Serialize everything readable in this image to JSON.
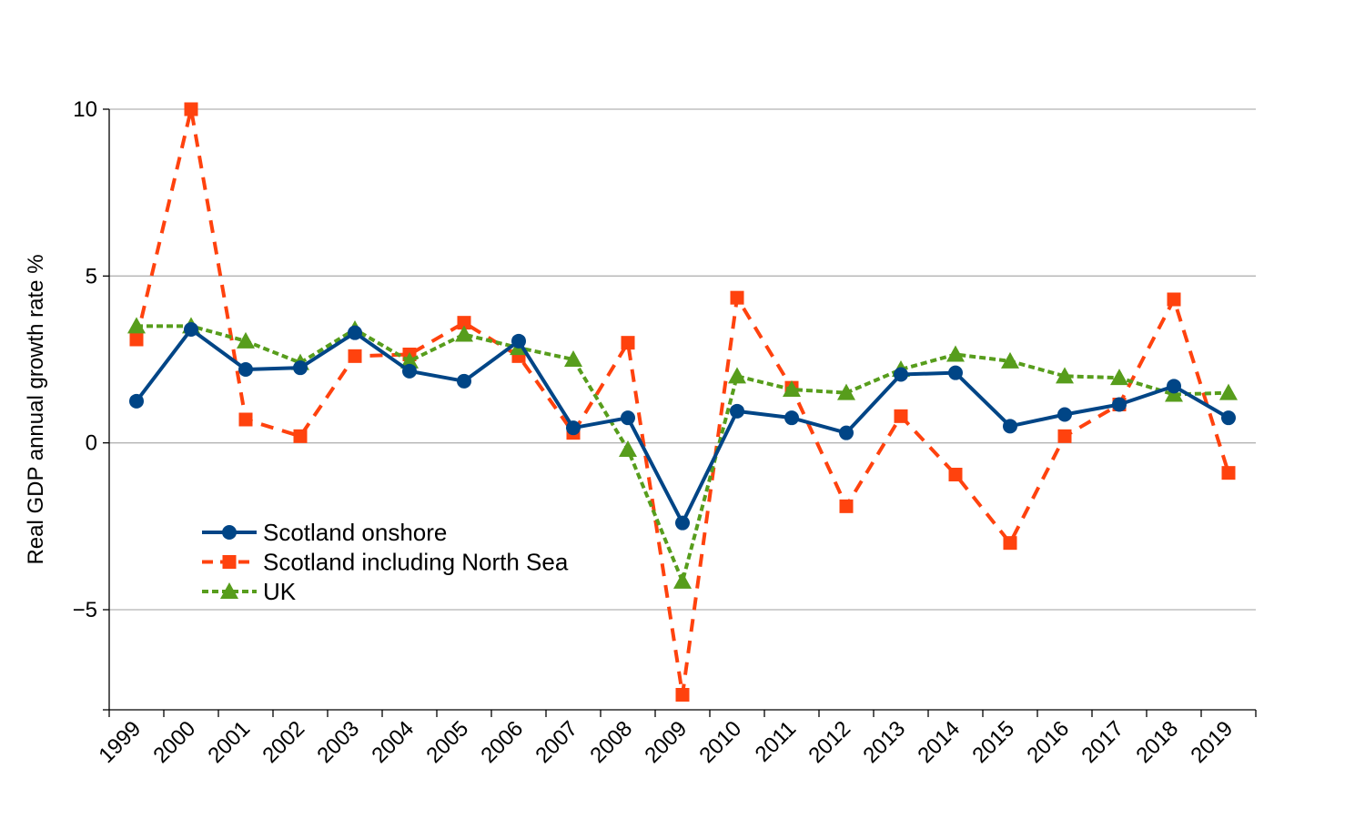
{
  "chart_data": {
    "type": "line",
    "title": "",
    "xlabel": "",
    "ylabel": "Real GDP annual growth rate %",
    "ylim": [
      -8,
      10
    ],
    "yticks": [
      10,
      5,
      0,
      -5
    ],
    "ytick_labels": [
      "10",
      "5",
      "0",
      "−5"
    ],
    "grid": true,
    "legend_position": "bottom-left",
    "categories": [
      "1999",
      "2000",
      "2001",
      "2002",
      "2003",
      "2004",
      "2005",
      "2006",
      "2007",
      "2008",
      "2009",
      "2010",
      "2011",
      "2012",
      "2013",
      "2014",
      "2015",
      "2016",
      "2017",
      "2018",
      "2019"
    ],
    "series": [
      {
        "name": "Scotland onshore",
        "color": "#004586",
        "line_style": "solid",
        "marker": "circle",
        "values": [
          1.25,
          3.4,
          2.2,
          2.25,
          3.3,
          2.15,
          1.85,
          3.05,
          0.45,
          0.75,
          -2.4,
          0.95,
          0.75,
          0.3,
          2.05,
          2.1,
          0.5,
          0.85,
          1.15,
          1.7,
          0.75
        ]
      },
      {
        "name": "Scotland including North Sea",
        "color": "#ff420e",
        "line_style": "dashed",
        "marker": "square",
        "values": [
          3.1,
          10.0,
          0.7,
          0.2,
          2.6,
          2.65,
          3.6,
          2.6,
          0.3,
          3.0,
          -7.55,
          4.35,
          1.65,
          -1.9,
          0.8,
          -0.95,
          -3.0,
          0.2,
          1.15,
          4.3,
          -0.9
        ]
      },
      {
        "name": "UK",
        "color": "#579d1c",
        "line_style": "dotted",
        "marker": "triangle",
        "values": [
          3.5,
          3.5,
          3.05,
          2.4,
          3.4,
          2.45,
          3.25,
          2.85,
          2.5,
          -0.2,
          -4.15,
          2.0,
          1.6,
          1.5,
          2.2,
          2.65,
          2.45,
          2.0,
          1.95,
          1.45,
          1.5
        ]
      }
    ]
  }
}
